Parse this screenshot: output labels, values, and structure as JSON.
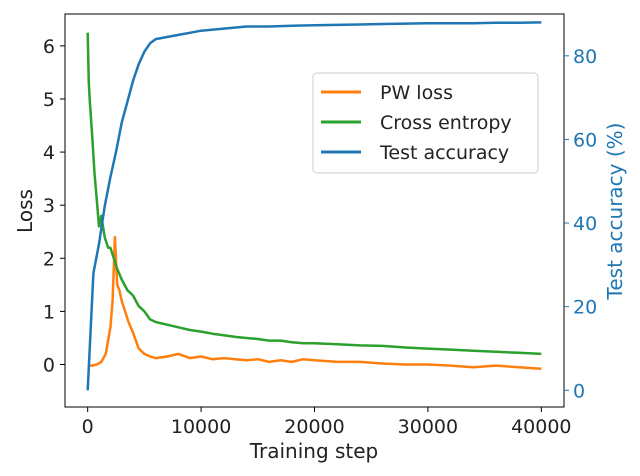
{
  "chart_data": {
    "type": "line",
    "xlabel": "Training step",
    "ylabel_left": "Loss",
    "ylabel_right": "Test accuracy (%)",
    "xlim": [
      -2000,
      42000
    ],
    "ylim_left": [
      -0.8,
      6.6
    ],
    "ylim_right": [
      -4,
      90
    ],
    "x_ticks": [
      0,
      10000,
      20000,
      30000,
      40000
    ],
    "x_tick_labels": [
      "0",
      "10000",
      "20000",
      "30000",
      "40000"
    ],
    "y_ticks_left": [
      0,
      1,
      2,
      3,
      4,
      5,
      6
    ],
    "y_tick_labels_left": [
      "0",
      "1",
      "2",
      "3",
      "4",
      "5",
      "6"
    ],
    "y_ticks_right": [
      0,
      20,
      40,
      60,
      80
    ],
    "y_tick_labels_right": [
      "0",
      "20",
      "40",
      "60",
      "80"
    ],
    "grid": false,
    "legend_position": "upper-right",
    "series": [
      {
        "name": "PW loss",
        "axis": "left",
        "color": "#ff7f0e",
        "x": [
          0,
          400,
          800,
          1200,
          1600,
          2000,
          2200,
          2400,
          2600,
          2800,
          3000,
          3300,
          3600,
          4000,
          4500,
          5000,
          5500,
          6000,
          7000,
          8000,
          9000,
          10000,
          11000,
          12000,
          13000,
          14000,
          15000,
          16000,
          17000,
          18000,
          19000,
          20000,
          22000,
          24000,
          26000,
          28000,
          30000,
          32000,
          34000,
          36000,
          38000,
          40000
        ],
        "y": [
          -0.02,
          -0.02,
          0.0,
          0.05,
          0.2,
          0.7,
          1.2,
          2.4,
          1.5,
          1.4,
          1.2,
          1.0,
          0.8,
          0.6,
          0.3,
          0.2,
          0.15,
          0.12,
          0.15,
          0.2,
          0.12,
          0.15,
          0.1,
          0.12,
          0.1,
          0.08,
          0.1,
          0.05,
          0.08,
          0.05,
          0.1,
          0.08,
          0.05,
          0.05,
          0.02,
          0.0,
          0.0,
          -0.02,
          -0.05,
          -0.02,
          -0.05,
          -0.08
        ]
      },
      {
        "name": "Cross entropy",
        "axis": "left",
        "color": "#2ca02c",
        "x": [
          0,
          100,
          200,
          400,
          600,
          800,
          1000,
          1200,
          1500,
          1800,
          2000,
          2300,
          2600,
          3000,
          3500,
          4000,
          4500,
          5000,
          5500,
          6000,
          7000,
          8000,
          9000,
          10000,
          11000,
          12000,
          13000,
          14000,
          15000,
          16000,
          17000,
          18000,
          19000,
          20000,
          22000,
          24000,
          26000,
          28000,
          30000,
          32000,
          34000,
          35000,
          36000,
          38000,
          40000
        ],
        "y": [
          6.25,
          5.3,
          4.9,
          4.3,
          3.6,
          3.1,
          2.6,
          2.8,
          2.4,
          2.2,
          2.2,
          2.0,
          1.8,
          1.6,
          1.4,
          1.3,
          1.1,
          1.0,
          0.85,
          0.8,
          0.75,
          0.7,
          0.65,
          0.62,
          0.58,
          0.55,
          0.52,
          0.5,
          0.48,
          0.45,
          0.45,
          0.42,
          0.4,
          0.4,
          0.38,
          0.36,
          0.35,
          0.32,
          0.3,
          0.28,
          0.26,
          0.25,
          0.24,
          0.22,
          0.2
        ]
      },
      {
        "name": "Test accuracy",
        "axis": "right",
        "color": "#1f77b4",
        "x": [
          0,
          500,
          1000,
          1500,
          2000,
          2500,
          3000,
          3500,
          4000,
          4500,
          5000,
          5500,
          6000,
          7000,
          8000,
          9000,
          10000,
          12000,
          14000,
          16000,
          18000,
          20000,
          22000,
          24000,
          26000,
          28000,
          30000,
          32000,
          34000,
          36000,
          38000,
          40000
        ],
        "y": [
          0,
          28,
          35,
          44,
          51,
          57,
          64,
          69,
          74,
          78,
          81,
          83,
          84,
          84.5,
          85,
          85.5,
          86,
          86.5,
          87,
          87,
          87.2,
          87.3,
          87.4,
          87.5,
          87.6,
          87.7,
          87.8,
          87.8,
          87.8,
          87.9,
          87.9,
          88
        ]
      }
    ]
  }
}
